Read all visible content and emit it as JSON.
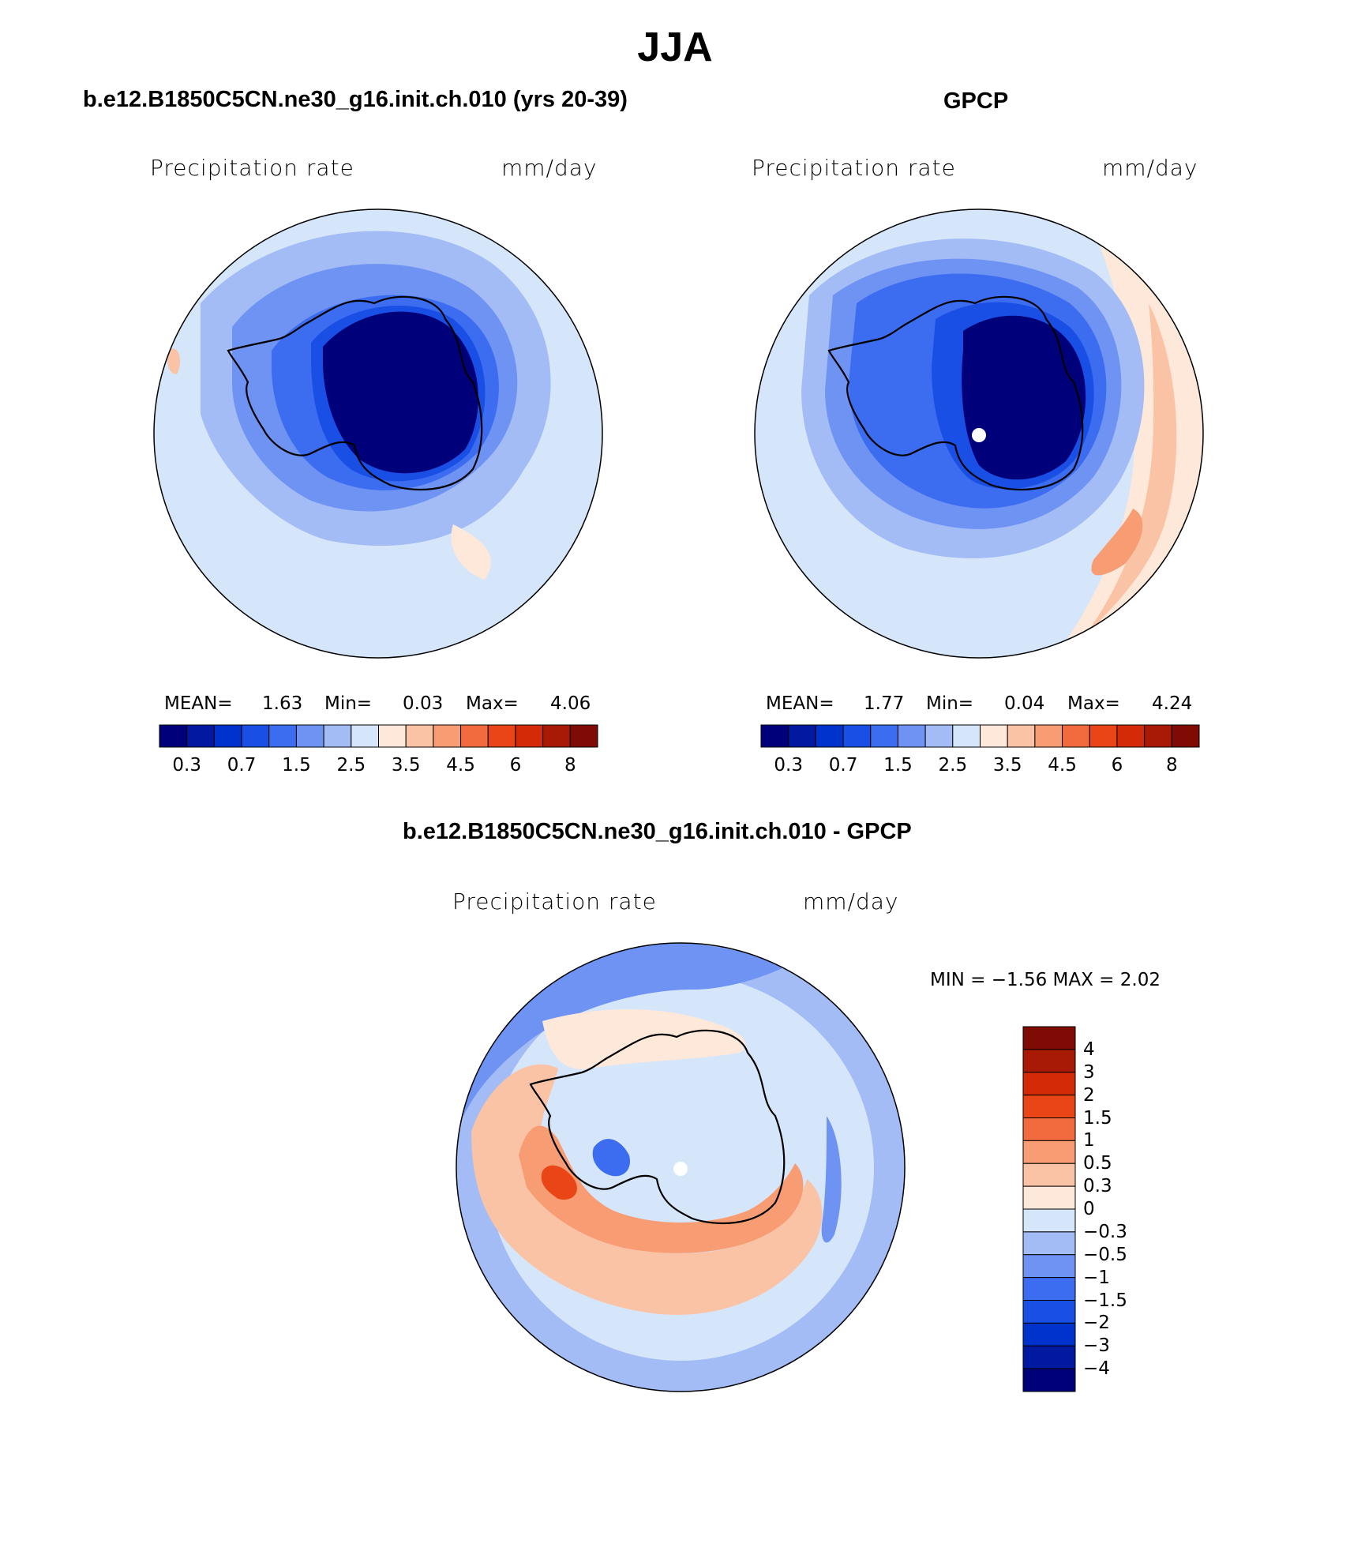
{
  "title": "JJA",
  "panels": [
    {
      "title": "b.e12.B1850C5CN.ne30_g16.init.ch.010 (yrs 20-39)",
      "variable": "Precipitation rate",
      "units": "mm/day",
      "stats": {
        "mean_label": "MEAN=",
        "mean": "1.63",
        "min_label": "Min=",
        "min": "0.03",
        "max_label": "Max=",
        "max": "4.06"
      }
    },
    {
      "title": "GPCP",
      "variable": "Precipitation rate",
      "units": "mm/day",
      "stats": {
        "mean_label": "MEAN=",
        "mean": "1.77",
        "min_label": "Min=",
        "min": "0.04",
        "max_label": "Max=",
        "max": "4.24"
      }
    }
  ],
  "difference": {
    "title": "b.e12.B1850C5CN.ne30_g16.init.ch.010 - GPCP",
    "variable": "Precipitation rate",
    "units": "mm/day",
    "minmax_text": "MIN =   −1.56  MAX =    2.02"
  },
  "colorbar_abs": {
    "colors": [
      "#00007a",
      "#0019a0",
      "#0033cc",
      "#1a4fe6",
      "#3c6cf0",
      "#6f93f3",
      "#a3bcf5",
      "#d6e6fa",
      "#fde8da",
      "#fbc3a5",
      "#f79c73",
      "#f26b3f",
      "#ea4516",
      "#d42a07",
      "#a81a06",
      "#7e0c04"
    ],
    "labels": [
      "0.3",
      "0.7",
      "1.5",
      "2.5",
      "3.5",
      "4.5",
      "6",
      "8"
    ]
  },
  "colorbar_diff": {
    "colors": [
      "#7e0c04",
      "#a81a06",
      "#d42a07",
      "#ea4516",
      "#f26b3f",
      "#f79c73",
      "#fbc3a5",
      "#fde8da",
      "#d6e6fa",
      "#a3bcf5",
      "#6f93f3",
      "#3c6cf0",
      "#1a4fe6",
      "#0033cc",
      "#0019a0",
      "#00007a"
    ],
    "labels": [
      "4",
      "3",
      "2",
      "1.5",
      "1",
      "0.5",
      "0.3",
      "0",
      "−0.3",
      "−0.5",
      "−1",
      "−1.5",
      "−2",
      "−3",
      "−4"
    ]
  }
}
